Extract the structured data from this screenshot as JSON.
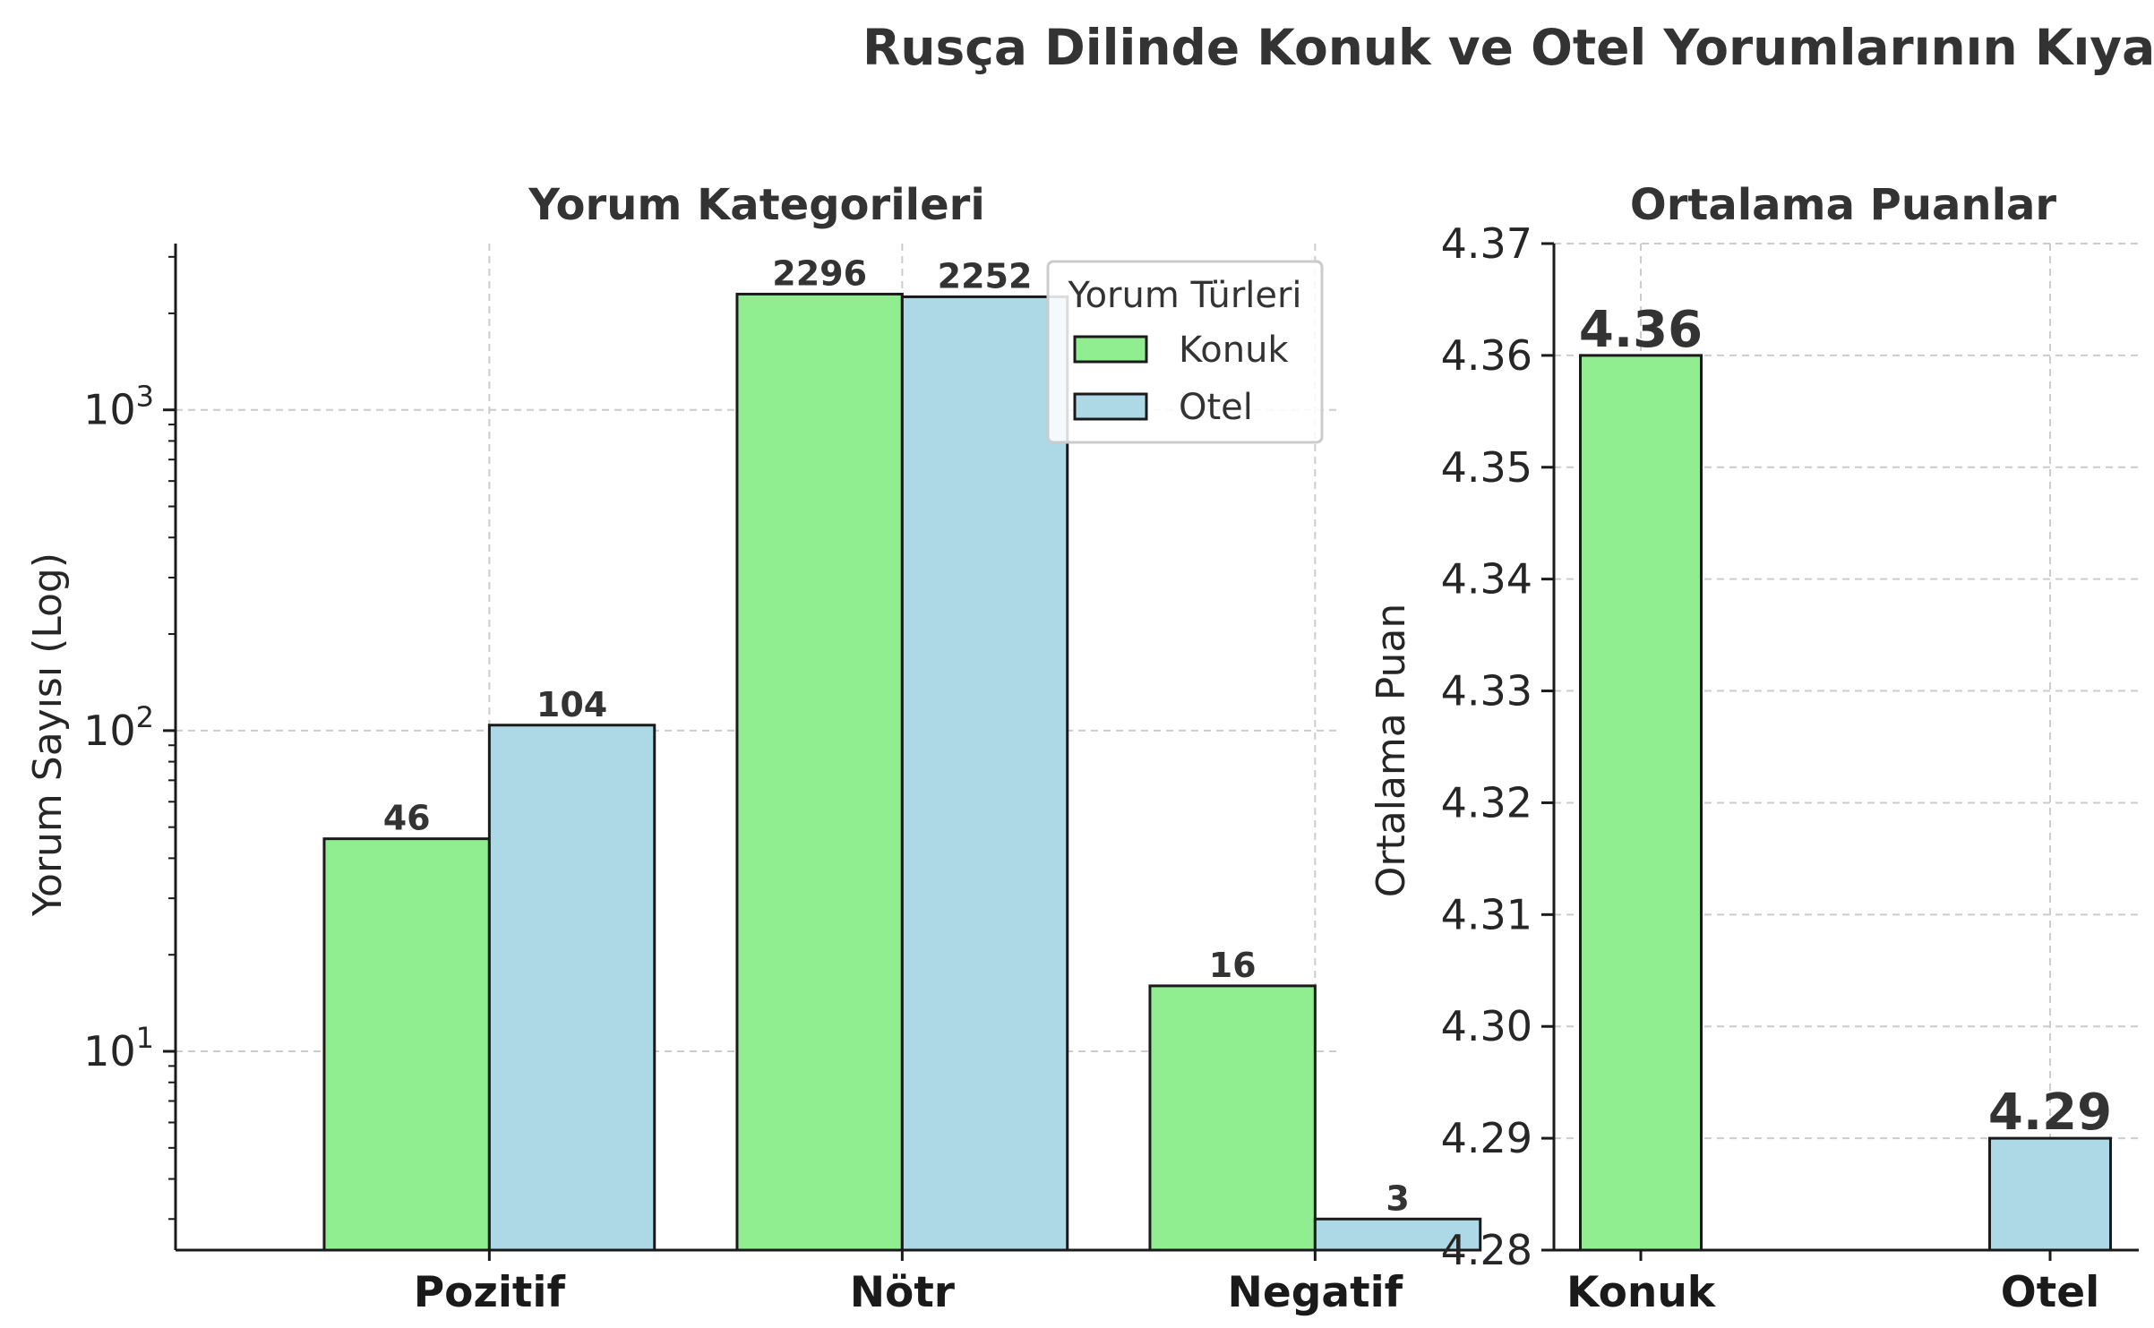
{
  "figure": {
    "title": "Rusça Dilinde Konuk ve Otel Yorumlarının Kıyaslaması"
  },
  "colors": {
    "konuk": "#90ee90",
    "otel": "#add8e6",
    "edge": "#1a1a1a"
  },
  "chart_data": [
    {
      "type": "bar",
      "title": "Yorum Kategorileri",
      "xlabel": "",
      "ylabel": "Yorum Sayısı (Log)",
      "yscale": "log",
      "ylim": [
        2.4,
        3300
      ],
      "yticks": [
        {
          "value": 10,
          "base": "10",
          "exp": "1"
        },
        {
          "value": 100,
          "base": "10",
          "exp": "2"
        },
        {
          "value": 1000,
          "base": "10",
          "exp": "3"
        }
      ],
      "categories": [
        "Pozitif",
        "Nötr",
        "Negatif"
      ],
      "series": [
        {
          "name": "Konuk",
          "values": [
            46,
            2296,
            16
          ]
        },
        {
          "name": "Otel",
          "values": [
            104,
            2252,
            3
          ]
        }
      ],
      "legend": {
        "title": "Yorum Türleri",
        "position": "top-right"
      },
      "grid": true
    },
    {
      "type": "bar",
      "title": "Ortalama Puanlar",
      "xlabel": "",
      "ylabel": "Ortalama Puan",
      "ylim": [
        4.28,
        4.37
      ],
      "yticks": [
        "4.28",
        "4.29",
        "4.30",
        "4.31",
        "4.32",
        "4.33",
        "4.34",
        "4.35",
        "4.36",
        "4.37"
      ],
      "categories": [
        "Konuk",
        "Otel"
      ],
      "values": [
        4.36,
        4.29
      ],
      "value_labels": [
        "4.36",
        "4.29"
      ],
      "grid": true
    }
  ]
}
